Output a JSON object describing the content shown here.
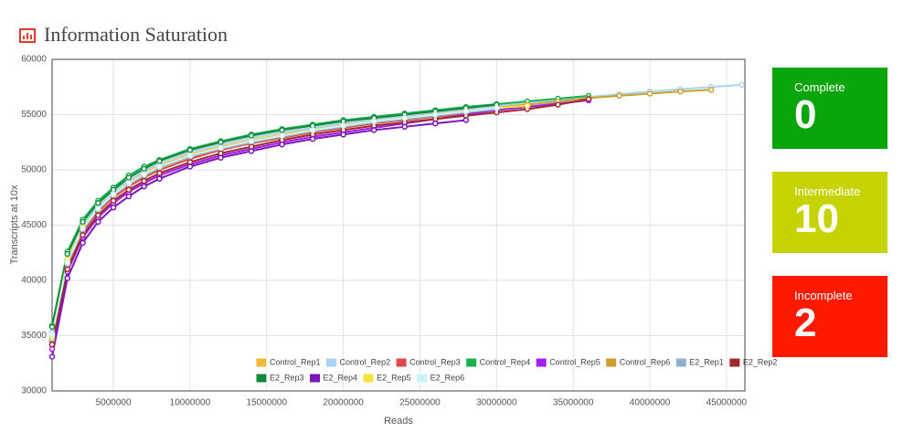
{
  "chart_data": {
    "type": "line",
    "title": "Information Saturation",
    "x_label": "Reads",
    "y_label": "Transcripts at 10x",
    "x": [
      1000000,
      2000000,
      3000000,
      4000000,
      5000000,
      6000000,
      7000000,
      8000000,
      10000000,
      12000000,
      14000000,
      16000000,
      18000000,
      20000000,
      22000000,
      24000000,
      26000000,
      28000000,
      30000000,
      32000000,
      34000000,
      36000000,
      38000000,
      40000000,
      42000000,
      44000000,
      46000000
    ],
    "xlim": [
      1000000,
      46200000
    ],
    "ylim": [
      30000,
      60000
    ],
    "xticks": [
      5000000,
      10000000,
      15000000,
      20000000,
      25000000,
      30000000,
      35000000,
      40000000,
      45000000
    ],
    "yticks": [
      30000,
      35000,
      40000,
      45000,
      50000,
      55000,
      60000
    ],
    "grid": true,
    "legend": "bottom-right",
    "series": [
      {
        "name": "Control_Rep1",
        "color": "#f5b93a",
        "values": [
          35000,
          41800,
          44900,
          46600,
          47900,
          48900,
          49700,
          50400,
          51400,
          52100,
          52700,
          53200,
          53700,
          54100,
          54500,
          54800,
          55100,
          55400,
          55700,
          55900,
          null,
          null,
          null,
          null,
          null,
          null,
          null
        ]
      },
      {
        "name": "Control_Rep2",
        "color": "#a9d4f5",
        "values": [
          35300,
          42000,
          45000,
          46800,
          48000,
          49100,
          49900,
          50600,
          51600,
          52300,
          52900,
          53400,
          53800,
          54200,
          54600,
          54900,
          55200,
          55500,
          55800,
          56100,
          56350,
          56600,
          56850,
          57100,
          57300,
          57500,
          57700
        ]
      },
      {
        "name": "Control_Rep3",
        "color": "#e04848",
        "values": [
          34500,
          41300,
          44400,
          46200,
          47500,
          48500,
          49300,
          50000,
          51000,
          51800,
          52400,
          52900,
          53400,
          53800,
          54200,
          54500,
          54800,
          55100,
          55400,
          55700,
          56000,
          56300,
          null,
          null,
          null,
          null,
          null
        ]
      },
      {
        "name": "Control_Rep4",
        "color": "#19b04f",
        "values": [
          35900,
          42600,
          45500,
          47200,
          48400,
          49500,
          50300,
          50900,
          51900,
          52600,
          53200,
          53700,
          54100,
          54500,
          54800,
          55100,
          55400,
          55700,
          55950,
          56200,
          56450,
          56700,
          null,
          null,
          null,
          null,
          null
        ]
      },
      {
        "name": "Control_Rep5",
        "color": "#a41ef0",
        "values": [
          33800,
          40800,
          43900,
          45700,
          47000,
          48000,
          48800,
          49500,
          50500,
          51300,
          51900,
          52500,
          53000,
          53400,
          53800,
          54200,
          54600,
          55000,
          55400,
          55700,
          56000,
          56300,
          null,
          null,
          null,
          null,
          null
        ]
      },
      {
        "name": "Control_Rep6",
        "color": "#c8a02a",
        "values": [
          34800,
          41700,
          44700,
          46400,
          47700,
          48700,
          49500,
          50200,
          51200,
          51900,
          52500,
          53000,
          53500,
          53900,
          54300,
          54600,
          54900,
          55200,
          55600,
          55900,
          56200,
          56500,
          56700,
          56900,
          57100,
          57250,
          null
        ]
      },
      {
        "name": "E2_Rep1",
        "color": "#8fb0cc",
        "values": [
          34700,
          41500,
          44600,
          46400,
          47700,
          48700,
          49500,
          50200,
          51200,
          51900,
          52500,
          53000,
          53500,
          53900,
          54300,
          54600,
          54900,
          55200,
          55500,
          null,
          null,
          null,
          null,
          null,
          null,
          null,
          null
        ]
      },
      {
        "name": "E2_Rep2",
        "color": "#a0282e",
        "values": [
          34200,
          41000,
          44100,
          45900,
          47200,
          48200,
          49000,
          49700,
          50700,
          51500,
          52100,
          52700,
          53200,
          53600,
          54000,
          54300,
          54600,
          54900,
          55200,
          55500,
          55900,
          56400,
          null,
          null,
          null,
          null,
          null
        ]
      },
      {
        "name": "E2_Rep3",
        "color": "#128a3c",
        "values": [
          35800,
          42400,
          45300,
          47000,
          48200,
          49300,
          50100,
          50800,
          51800,
          52500,
          53100,
          53600,
          54000,
          54400,
          54700,
          55000,
          55300,
          55600,
          55900,
          null,
          null,
          null,
          null,
          null,
          null,
          null,
          null
        ]
      },
      {
        "name": "E2_Rep4",
        "color": "#7b17b8",
        "values": [
          33100,
          40200,
          43400,
          45300,
          46600,
          47600,
          48500,
          49200,
          50300,
          51100,
          51700,
          52300,
          52800,
          53200,
          53600,
          53900,
          54200,
          54500,
          null,
          null,
          null,
          null,
          null,
          null,
          null,
          null,
          null
        ]
      },
      {
        "name": "E2_Rep5",
        "color": "#f8e33a",
        "values": [
          34900,
          41900,
          44800,
          46500,
          47800,
          48800,
          49600,
          50300,
          51300,
          52000,
          52600,
          53100,
          53600,
          54000,
          54400,
          54700,
          55000,
          55300,
          55600,
          55800,
          null,
          null,
          null,
          null,
          null,
          null,
          null
        ]
      },
      {
        "name": "E2_Rep6",
        "color": "#c8f4fb",
        "values": [
          35100,
          41600,
          44700,
          46500,
          47800,
          48800,
          49600,
          50300,
          51300,
          52000,
          52600,
          53100,
          53600,
          54000,
          54400,
          54700,
          55000,
          55300,
          55600,
          null,
          null,
          null,
          null,
          null,
          null,
          null,
          null
        ]
      }
    ]
  },
  "status_cards": [
    {
      "label": "Complete",
      "value": 0,
      "color": "#0aa50a"
    },
    {
      "label": "Intermediate",
      "value": 10,
      "color": "#c5d400"
    },
    {
      "label": "Incomplete",
      "value": 2,
      "color": "#fe1a00"
    }
  ]
}
